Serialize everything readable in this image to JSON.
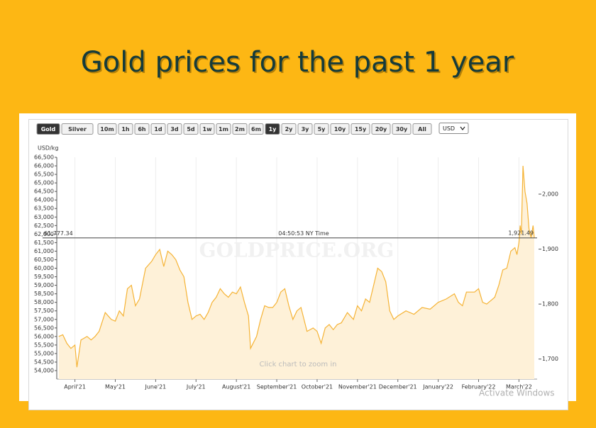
{
  "chart_data": {
    "type": "line",
    "title": "Gold prices for the past 1 year",
    "buttons": [
      {
        "label": "Gold",
        "active": true
      },
      {
        "label": "Silver",
        "active": false
      },
      {
        "label": "10m",
        "active": false
      },
      {
        "label": "1h",
        "active": false
      },
      {
        "label": "6h",
        "active": false
      },
      {
        "label": "1d",
        "active": false
      },
      {
        "label": "3d",
        "active": false
      },
      {
        "label": "5d",
        "active": false
      },
      {
        "label": "1w",
        "active": false
      },
      {
        "label": "1m",
        "active": false
      },
      {
        "label": "2m",
        "active": false
      },
      {
        "label": "6m",
        "active": false
      },
      {
        "label": "1y",
        "active": true
      },
      {
        "label": "2y",
        "active": false
      },
      {
        "label": "3y",
        "active": false
      },
      {
        "label": "5y",
        "active": false
      },
      {
        "label": "10y",
        "active": false
      },
      {
        "label": "15y",
        "active": false
      },
      {
        "label": "20y",
        "active": false
      },
      {
        "label": "30y",
        "active": false
      },
      {
        "label": "All",
        "active": false
      }
    ],
    "currency": "USD",
    "ylabel": "USD/kg",
    "watermark": "GOLDPRICE.ORG",
    "note": "Click chart to zoom in",
    "overlay": "Activate Windows",
    "crosshair": {
      "value": 61777.34,
      "label": "61,777.34",
      "time": "04:50:53 NY Time",
      "y2_value": 1921.49,
      "y2_label": "1,921.49"
    },
    "series": [
      {
        "name": "Gold",
        "color": "#f5b335",
        "x": [
          -0.4,
          -0.3,
          -0.2,
          -0.1,
          0,
          0.05,
          0.15,
          0.3,
          0.4,
          0.5,
          0.6,
          0.75,
          0.9,
          1.0,
          1.1,
          1.2,
          1.3,
          1.4,
          1.5,
          1.6,
          1.75,
          1.9,
          2.0,
          2.1,
          2.2,
          2.3,
          2.4,
          2.5,
          2.6,
          2.7,
          2.8,
          2.9,
          3.0,
          3.1,
          3.2,
          3.3,
          3.4,
          3.5,
          3.6,
          3.7,
          3.8,
          3.9,
          4.0,
          4.1,
          4.2,
          4.3,
          4.35,
          4.5,
          4.6,
          4.7,
          4.8,
          4.9,
          5.0,
          5.1,
          5.2,
          5.3,
          5.4,
          5.5,
          5.6,
          5.75,
          5.9,
          6.0,
          6.1,
          6.2,
          6.3,
          6.4,
          6.5,
          6.6,
          6.75,
          6.9,
          7.0,
          7.1,
          7.2,
          7.3,
          7.4,
          7.5,
          7.6,
          7.7,
          7.8,
          7.9,
          8.0,
          8.2,
          8.4,
          8.6,
          8.8,
          9.0,
          9.2,
          9.4,
          9.5,
          9.6,
          9.7,
          9.9,
          10.0,
          10.1,
          10.2,
          10.3,
          10.4,
          10.5,
          10.6,
          10.7,
          10.8,
          10.9,
          10.95,
          11.0,
          11.03,
          11.06,
          11.1,
          11.15,
          11.2,
          11.25,
          11.3,
          11.35,
          11.38
        ],
        "values": [
          56000,
          56100,
          55600,
          55300,
          55500,
          54200,
          55800,
          56000,
          55800,
          56000,
          56300,
          57400,
          57000,
          56900,
          57500,
          57200,
          58800,
          59000,
          57800,
          58200,
          60000,
          60400,
          60800,
          61100,
          60100,
          61000,
          60800,
          60500,
          59900,
          59500,
          58000,
          57000,
          57200,
          57300,
          57000,
          57400,
          58000,
          58300,
          58800,
          58500,
          58300,
          58600,
          58500,
          58900,
          58000,
          57200,
          55300,
          56000,
          57000,
          57800,
          57700,
          57700,
          58000,
          58600,
          58800,
          57800,
          57000,
          57500,
          57700,
          56300,
          56500,
          56300,
          55600,
          56500,
          56700,
          56400,
          56700,
          56800,
          57400,
          57000,
          57800,
          57500,
          58200,
          58000,
          59000,
          60000,
          59800,
          59200,
          57500,
          57000,
          57200,
          57500,
          57300,
          57700,
          57600,
          58000,
          58200,
          58500,
          58000,
          57800,
          58600,
          58600,
          58800,
          58000,
          57900,
          58100,
          58300,
          59000,
          59900,
          60000,
          61000,
          61200,
          60800,
          61500,
          62500,
          62000,
          66000,
          64500,
          63800,
          62300,
          61800,
          62500,
          61800
        ]
      }
    ],
    "xlim": [
      -0.45,
      11.45
    ],
    "xticks": [
      {
        "value": 0,
        "label": "April'21"
      },
      {
        "value": 1,
        "label": "May'21"
      },
      {
        "value": 2,
        "label": "June'21"
      },
      {
        "value": 3,
        "label": "July'21"
      },
      {
        "value": 4,
        "label": "August'21"
      },
      {
        "value": 5,
        "label": "September'21"
      },
      {
        "value": 6,
        "label": "October'21"
      },
      {
        "value": 7,
        "label": "November'21"
      },
      {
        "value": 8,
        "label": "December'21"
      },
      {
        "value": 9,
        "label": "January'22"
      },
      {
        "value": 10,
        "label": "February'22"
      },
      {
        "value": 11,
        "label": "March'22"
      }
    ],
    "ylim": [
      54000,
      66500
    ],
    "yticks": [
      {
        "value": 54000,
        "label": "54,000"
      },
      {
        "value": 54500,
        "label": "54,500"
      },
      {
        "value": 55000,
        "label": "55,000"
      },
      {
        "value": 55500,
        "label": "55,500"
      },
      {
        "value": 56000,
        "label": "56,000"
      },
      {
        "value": 56500,
        "label": "56,500"
      },
      {
        "value": 57000,
        "label": "57,000"
      },
      {
        "value": 57500,
        "label": "57,500"
      },
      {
        "value": 58000,
        "label": "58,000"
      },
      {
        "value": 58500,
        "label": "58,500"
      },
      {
        "value": 59000,
        "label": "59,000"
      },
      {
        "value": 59500,
        "label": "59,500"
      },
      {
        "value": 60000,
        "label": "60,000"
      },
      {
        "value": 60500,
        "label": "60,500"
      },
      {
        "value": 61000,
        "label": "61,000"
      },
      {
        "value": 61500,
        "label": "61,500"
      },
      {
        "value": 62000,
        "label": "62,000"
      },
      {
        "value": 62500,
        "label": "62,500"
      },
      {
        "value": 63000,
        "label": "63,000"
      },
      {
        "value": 63500,
        "label": "63,500"
      },
      {
        "value": 64000,
        "label": "64,000"
      },
      {
        "value": 64500,
        "label": "64,500"
      },
      {
        "value": 65000,
        "label": "65,000"
      },
      {
        "value": 65500,
        "label": "65,500"
      },
      {
        "value": 66000,
        "label": "66,000"
      },
      {
        "value": 66500,
        "label": "66,500"
      }
    ],
    "y2lim": [
      1679,
      2067
    ],
    "y2ticks": [
      {
        "value": 1700,
        "label": "1,700"
      },
      {
        "value": 1800,
        "label": "1,800"
      },
      {
        "value": 1900,
        "label": "1,900"
      },
      {
        "value": 2000,
        "label": "2,000"
      }
    ],
    "grid": true
  }
}
